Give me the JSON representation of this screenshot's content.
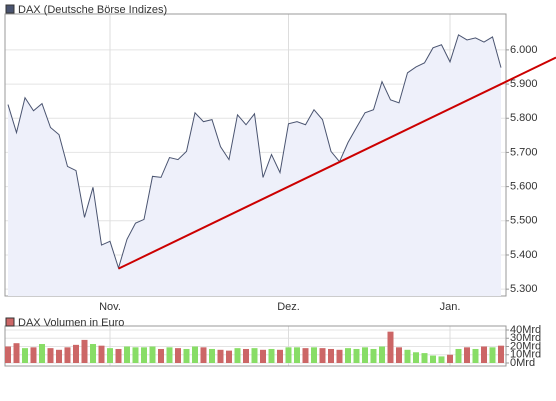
{
  "chart_data": [
    {
      "type": "line",
      "series": [
        {
          "name": "DAX (Deutsche Börse Indizes)",
          "color": "#4a5470",
          "values": [
            5840,
            5758,
            5860,
            5822,
            5843,
            5773,
            5752,
            5659,
            5647,
            5510,
            5598,
            5429,
            5440,
            5362,
            5446,
            5493,
            5504,
            5630,
            5627,
            5685,
            5679,
            5703,
            5816,
            5790,
            5796,
            5717,
            5679,
            5810,
            5781,
            5813,
            5627,
            5694,
            5641,
            5784,
            5790,
            5781,
            5825,
            5796,
            5703,
            5673,
            5729,
            5773,
            5816,
            5825,
            5907,
            5854,
            5845,
            5933,
            5950,
            5962,
            6006,
            6015,
            5965,
            6044,
            6029,
            6035,
            6023,
            6038,
            5948
          ]
        }
      ],
      "categories": [
        null,
        null,
        null,
        null,
        null,
        null,
        null,
        null,
        null,
        null,
        null,
        null,
        "Nov.",
        null,
        null,
        null,
        null,
        null,
        null,
        null,
        null,
        null,
        null,
        null,
        null,
        null,
        null,
        null,
        null,
        null,
        null,
        null,
        null,
        "Dez.",
        null,
        null,
        null,
        null,
        null,
        null,
        null,
        null,
        null,
        null,
        null,
        null,
        null,
        null,
        null,
        null,
        null,
        null,
        "Jan.",
        null,
        null,
        null,
        null,
        null,
        null
      ],
      "ylim": [
        5280,
        6105
      ],
      "yticks": [
        {
          "value": 5300,
          "label": "5.300"
        },
        {
          "value": 5400,
          "label": "5.400"
        },
        {
          "value": 5500,
          "label": "5.500"
        },
        {
          "value": 5600,
          "label": "5.600"
        },
        {
          "value": 5700,
          "label": "5.700"
        },
        {
          "value": 5800,
          "label": "5.800"
        },
        {
          "value": 5900,
          "label": "5.900"
        },
        {
          "value": 6000,
          "label": "6.000"
        }
      ],
      "grid": true,
      "trend_line": {
        "color": "#cc0000",
        "x": [
          13,
          58
        ],
        "values": [
          5360,
          5900
        ]
      }
    },
    {
      "type": "bar",
      "series": [
        {
          "name": "DAX Volumen in Euro",
          "color": "#cc6666",
          "values": [
            20,
            24,
            18,
            19,
            23,
            18,
            16,
            19,
            22,
            28,
            23,
            21,
            18,
            17,
            20,
            19,
            19,
            20,
            17,
            19,
            18,
            17,
            20,
            19,
            17,
            16,
            15,
            18,
            17,
            18,
            16,
            17,
            16,
            19,
            19,
            18,
            19,
            18,
            17,
            16,
            18,
            17,
            19,
            17,
            20,
            38,
            19,
            16,
            13,
            12,
            9,
            8,
            10,
            17,
            19,
            17,
            20,
            19,
            21
          ],
          "colors": [
            "#cc6666",
            "#cc6666",
            "#88dd66",
            "#cc6666",
            "#88dd66",
            "#cc6666",
            "#cc6666",
            "#cc6666",
            "#cc6666",
            "#cc6666",
            "#88dd66",
            "#cc6666",
            "#88dd66",
            "#cc6666",
            "#88dd66",
            "#88dd66",
            "#88dd66",
            "#88dd66",
            "#cc6666",
            "#88dd66",
            "#cc6666",
            "#88dd66",
            "#88dd66",
            "#cc6666",
            "#88dd66",
            "#cc6666",
            "#cc6666",
            "#88dd66",
            "#cc6666",
            "#88dd66",
            "#cc6666",
            "#88dd66",
            "#cc6666",
            "#88dd66",
            "#88dd66",
            "#cc6666",
            "#88dd66",
            "#cc6666",
            "#cc6666",
            "#cc6666",
            "#88dd66",
            "#88dd66",
            "#88dd66",
            "#88dd66",
            "#88dd66",
            "#cc6666",
            "#cc6666",
            "#88dd66",
            "#88dd66",
            "#88dd66",
            "#88dd66",
            "#88dd66",
            "#cc6666",
            "#88dd66",
            "#cc6666",
            "#88dd66",
            "#cc6666",
            "#88dd66",
            "#cc6666"
          ]
        }
      ],
      "ylim": [
        0,
        40
      ],
      "yticks": [
        {
          "value": 0,
          "label": "0Mrd"
        },
        {
          "value": 10,
          "label": "10Mrd"
        },
        {
          "value": 20,
          "label": "20Mrd"
        },
        {
          "value": 30,
          "label": "30Mrd"
        },
        {
          "value": 40,
          "label": "40Mrd"
        }
      ],
      "grid": true
    }
  ]
}
